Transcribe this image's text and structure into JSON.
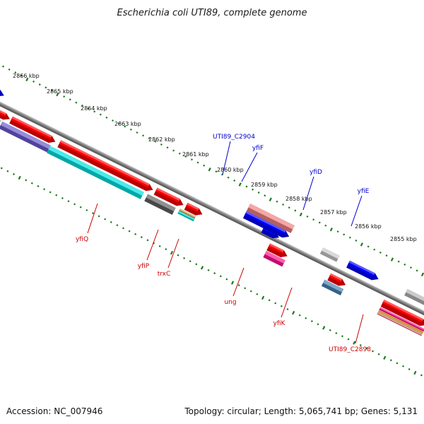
{
  "title": "Escherichia coli UTI89, complete genome",
  "footer": {
    "accession": "Accession: NC_007946",
    "summary": "Topology: circular; Length: 5,065,741 bp; Genes: 5,131"
  },
  "scale": {
    "unit_suffix": "kbp",
    "positions": [
      2866,
      2865,
      2864,
      2863,
      2862,
      2861,
      2860,
      2859,
      2858,
      2857,
      2856,
      2855
    ]
  },
  "colors": {
    "backbone": "#888888",
    "scale_ticks": "#1b7a1b",
    "forward_label": "#0000cc",
    "reverse_label": "#cc0000"
  },
  "features": {
    "forward_labeled": [
      {
        "name": "UTI89_C2904",
        "color": "#f08080"
      },
      {
        "name": "yfiF",
        "color": "#0000ff"
      },
      {
        "name": "yfiD",
        "color": "#c8c8c8"
      },
      {
        "name": "yfiE",
        "color": "#0000ff"
      }
    ],
    "reverse_labeled": [
      {
        "name": "yfiQ",
        "color": "#00e0e0"
      },
      {
        "name": "yfiP",
        "color": "#606060"
      },
      {
        "name": "trxC",
        "color": "#00e0e0"
      },
      {
        "name": "ung",
        "color": "#ff1493"
      },
      {
        "name": "yfiK",
        "color": "#4682b4"
      },
      {
        "name": "UTI89_C2898",
        "color": "#ff1493"
      }
    ]
  }
}
